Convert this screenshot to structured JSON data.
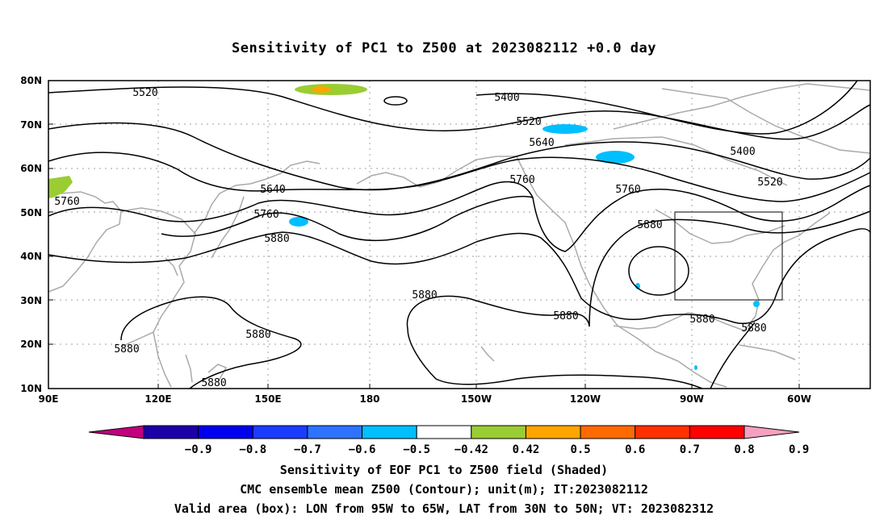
{
  "title": "Sensitivity of PC1 to Z500 at 2023082112 +0.0 day",
  "lat_labels": [
    "80N",
    "70N",
    "60N",
    "50N",
    "40N",
    "30N",
    "20N",
    "10N"
  ],
  "lon_labels": [
    "90E",
    "120E",
    "150E",
    "180",
    "150W",
    "120W",
    "90W",
    "60W"
  ],
  "contour_labels": [
    "5520",
    "5400",
    "5520",
    "5640",
    "5400",
    "5520",
    "5760",
    "5640",
    "5760",
    "5880",
    "5760",
    "5760",
    "5880",
    "5880",
    "5880",
    "5880",
    "5880",
    "5880",
    "5880",
    "5880"
  ],
  "colorbar": {
    "labels": [
      "-0.9",
      "-0.8",
      "-0.7",
      "-0.6",
      "-0.5",
      "-0.42",
      "0.42",
      "0.5",
      "0.6",
      "0.7",
      "0.8",
      "0.9"
    ],
    "colors": [
      "#c0007f",
      "#1c00a8",
      "#0000f0",
      "#1a3cff",
      "#2d73ff",
      "#00bfff",
      "#ffffff",
      "#9acd32",
      "#ffa500",
      "#ff6a00",
      "#ff3000",
      "#ff0000",
      "#f5a0c0"
    ]
  },
  "valid_box": {
    "lon_min": "95W",
    "lon_max": "65W",
    "lat_min": "30N",
    "lat_max": "50N"
  },
  "captions": [
    "Sensitivity of EOF PC1 to Z500 field (Shaded)",
    "CMC ensemble mean Z500 (Contour); unit(m); IT:2023082112",
    "Valid area (box): LON from 95W to 65W, LAT from 30N to 50N; VT: 2023082312"
  ]
}
